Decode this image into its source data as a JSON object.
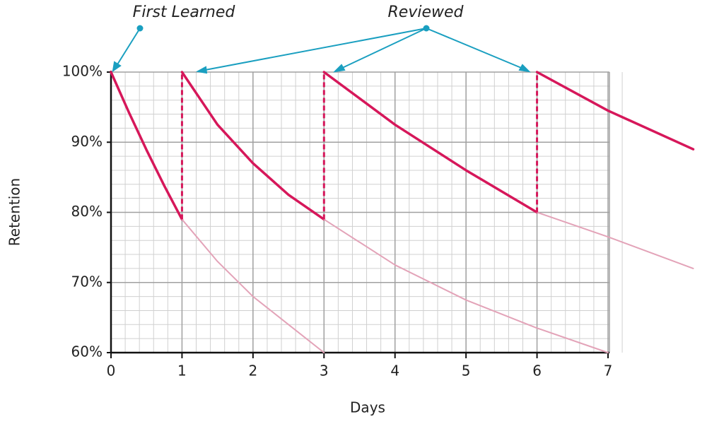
{
  "chart_data": {
    "type": "line",
    "annotations": [
      "First Learned",
      "Reviewed"
    ],
    "xlabel": "Days",
    "ylabel": "Retention",
    "xlim": [
      0,
      7
    ],
    "xticks": [
      0,
      1,
      2,
      3,
      4,
      5,
      6,
      7
    ],
    "ylim": [
      60,
      100
    ],
    "yticks": [
      {
        "value": 60,
        "label": "60%"
      },
      {
        "value": 70,
        "label": "70%"
      },
      {
        "value": 80,
        "label": "80%"
      },
      {
        "value": 90,
        "label": "90%"
      },
      {
        "value": 100,
        "label": "100%"
      }
    ],
    "grid": true,
    "x_minor_step": 0.2,
    "y_minor_step": 2,
    "series": [
      {
        "color": "#d6175a",
        "style": "bold",
        "x": [
          0,
          0.25,
          0.5,
          0.75,
          1
        ],
        "values": [
          100,
          94.3,
          88.9,
          83.8,
          79
        ]
      },
      {
        "color": "#e3a3b8",
        "style": "faded",
        "x": [
          1,
          1.5,
          2,
          2.5,
          3
        ],
        "values": [
          79,
          73,
          68,
          64,
          60
        ]
      },
      {
        "color": "#d6175a",
        "style": "bold",
        "x": [
          1,
          1.5,
          2,
          2.5,
          3
        ],
        "values": [
          100,
          92.5,
          87,
          82.5,
          79
        ]
      },
      {
        "color": "#e3a3b8",
        "style": "faded",
        "x": [
          3,
          4,
          5,
          6,
          7
        ],
        "values": [
          79,
          72.5,
          67.5,
          63.5,
          60
        ]
      },
      {
        "color": "#d6175a",
        "style": "bold",
        "x": [
          3,
          4,
          5,
          6
        ],
        "values": [
          100,
          92.5,
          86,
          80
        ]
      },
      {
        "color": "#e3a3b8",
        "style": "faded",
        "x": [
          6,
          7,
          8.2
        ],
        "values": [
          80,
          76.5,
          72
        ]
      },
      {
        "color": "#d6175a",
        "style": "bold",
        "x": [
          6,
          7,
          8.2
        ],
        "values": [
          100,
          94.5,
          89
        ]
      }
    ]
  }
}
